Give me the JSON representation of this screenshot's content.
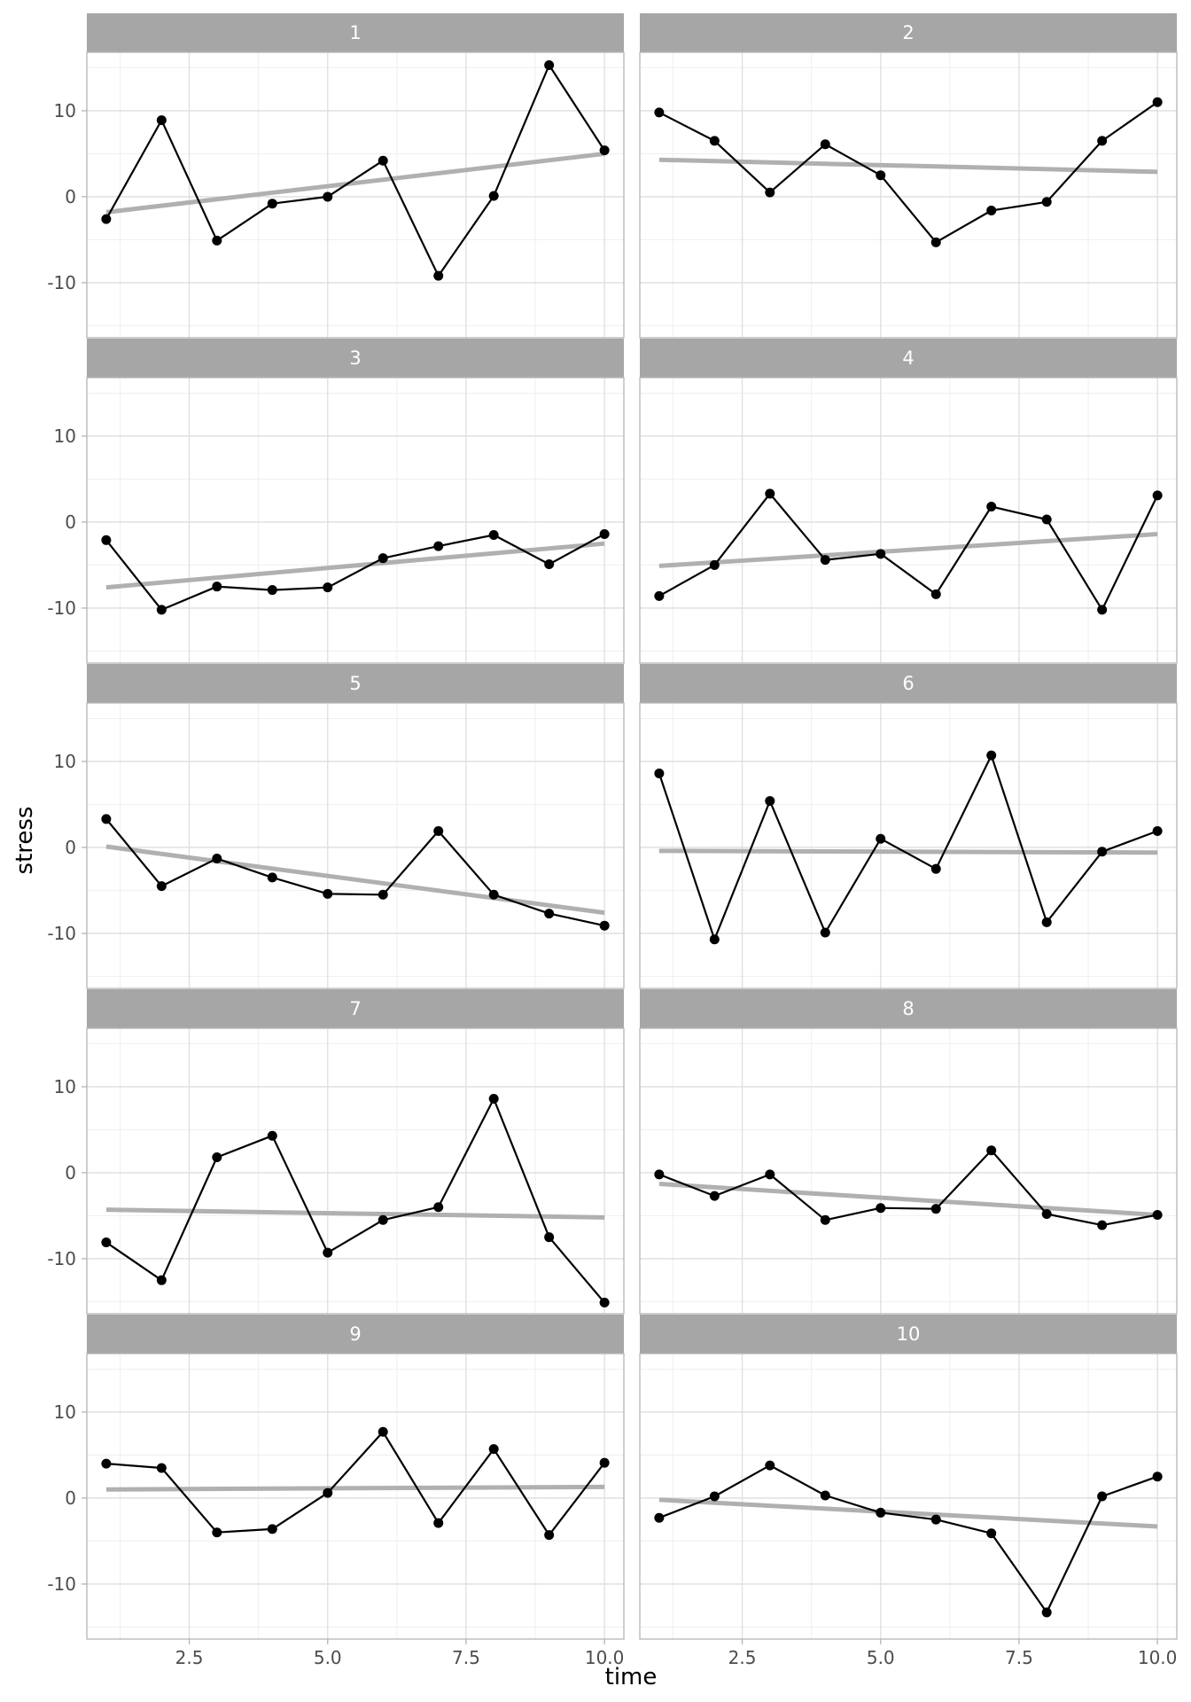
{
  "chart_data": {
    "type": "line",
    "facet_by": "panel",
    "xlabel": "time",
    "ylabel": "stress",
    "xlim": [
      0.65,
      10.35
    ],
    "ylim": [
      -16.4,
      16.8
    ],
    "x_ticks": [
      2.5,
      5.0,
      7.5,
      10.0
    ],
    "x_tick_labels": [
      "2.5",
      "5.0",
      "7.5",
      "10.0"
    ],
    "y_ticks": [
      -10,
      0,
      10
    ],
    "y_tick_labels": [
      "-10",
      "0",
      "10"
    ],
    "x": [
      1,
      2,
      3,
      4,
      5,
      6,
      7,
      8,
      9,
      10
    ],
    "grid": true,
    "colors": {
      "strip": "#a6a6a6",
      "strip_text": "#ffffff",
      "points_line": "#000000",
      "trend_line": "#b0b0b0",
      "grid_major": "#dedede",
      "grid_minor": "#efefef",
      "panel_border": "#b5b5b5",
      "axis_text": "#4d4d4d",
      "axis_title": "#000000"
    },
    "panels": [
      {
        "label": "1",
        "values": [
          -2.6,
          8.9,
          -5.1,
          -0.8,
          0.0,
          4.2,
          -9.2,
          0.1,
          15.3,
          5.4
        ],
        "trend": [
          -1.8,
          5.0
        ]
      },
      {
        "label": "2",
        "values": [
          9.8,
          6.5,
          0.5,
          6.1,
          2.5,
          -5.3,
          -1.6,
          -0.6,
          6.5,
          11.0
        ],
        "trend": [
          4.3,
          2.9
        ]
      },
      {
        "label": "3",
        "values": [
          -2.1,
          -10.2,
          -7.5,
          -7.9,
          -7.6,
          -4.2,
          -2.8,
          -1.5,
          -4.9,
          -1.4
        ],
        "trend": [
          -7.6,
          -2.5
        ]
      },
      {
        "label": "4",
        "values": [
          -8.6,
          -5.0,
          3.3,
          -4.4,
          -3.7,
          -8.4,
          1.8,
          0.3,
          -10.2,
          3.1
        ],
        "trend": [
          -5.1,
          -1.4
        ]
      },
      {
        "label": "5",
        "values": [
          3.3,
          -4.5,
          -1.3,
          -3.5,
          -5.4,
          -5.5,
          1.9,
          -5.5,
          -7.7,
          -9.1
        ],
        "trend": [
          0.1,
          -7.6
        ]
      },
      {
        "label": "6",
        "values": [
          8.6,
          -10.7,
          5.4,
          -9.9,
          1.0,
          -2.5,
          10.7,
          -8.7,
          -0.5,
          1.9
        ],
        "trend": [
          -0.4,
          -0.6
        ]
      },
      {
        "label": "7",
        "values": [
          -8.1,
          -12.5,
          1.8,
          4.3,
          -9.3,
          -5.5,
          -4.0,
          8.6,
          -7.5,
          -15.1
        ],
        "trend": [
          -4.3,
          -5.2
        ]
      },
      {
        "label": "8",
        "values": [
          -0.2,
          -2.7,
          -0.2,
          -5.5,
          -4.1,
          -4.2,
          2.6,
          -4.8,
          -6.1,
          -4.9
        ],
        "trend": [
          -1.3,
          -4.9
        ]
      },
      {
        "label": "9",
        "values": [
          4.0,
          3.5,
          -4.0,
          -3.6,
          0.6,
          7.7,
          -2.9,
          5.7,
          -4.3,
          4.1
        ],
        "trend": [
          1.0,
          1.3
        ]
      },
      {
        "label": "10",
        "values": [
          -2.3,
          0.2,
          3.8,
          0.3,
          -1.7,
          -2.5,
          -4.1,
          -13.3,
          0.2,
          2.5
        ],
        "trend": [
          -0.2,
          -3.3
        ]
      }
    ]
  }
}
